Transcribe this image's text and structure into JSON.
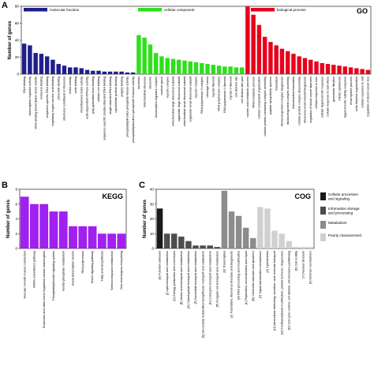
{
  "chart_data": [
    {
      "panel": "A",
      "type": "bar",
      "corner_label": "GO",
      "ylabel": "Number of genes",
      "ylim": [
        0,
        80
      ],
      "yticks": [
        0,
        20,
        40,
        60,
        80
      ],
      "legend": [
        {
          "name": "molecular function",
          "color": "#1f1f8c"
        },
        {
          "name": "cellular component",
          "color": "#2de01a"
        },
        {
          "name": "biological process",
          "color": "#e8001c"
        }
      ],
      "groups": [
        {
          "name": "molecular function",
          "color": "#1f1f8c",
          "categories": [
            "DNA binding",
            "transcription regulator activity",
            "DNA-binding transcription factor activity",
            "metal ion binding",
            "sequence-specific DNA binding",
            "regulatory region nucleic acid binding",
            "chromatin binding",
            "structural constituent of ribosome",
            "motor activity",
            "actin binding",
            "microfilament motor activity",
            "actin-dependent ATPase activity",
            "poly-pyrimidine tract binding",
            "calcium ion binding",
            "sequence-specific double-stranded DNA binding",
            "single-stranded RNA binding",
            "cytoskeletal protein binding",
            "poly(U) binding",
            "phosphatidylinositol phosphate kinase activity",
            "phosphatidylinositol-4-phosphate 5-kinase activity"
          ],
          "values": [
            36,
            34,
            25,
            24,
            21,
            17,
            12,
            10,
            8,
            8,
            7,
            5,
            4,
            4,
            3,
            3,
            3,
            3,
            2,
            2
          ]
        },
        {
          "name": "cellular component",
          "color": "#2de01a",
          "categories": [
            "nucleolus",
            "mitochondrial ribosome",
            "ribosome",
            "transcription regulator complex",
            "nuclear speck",
            "myosin complex",
            "mitochondrial large ribosomal subunit",
            "organellar large ribosomal subunit",
            "mitochondrial small ribosomal subunit",
            "organellar small ribosomal subunit",
            "myosin complex",
            "RNA polymerase II complex",
            "cleavage furrow",
            "myosin filament",
            "RNA polymerase complex",
            "RNA polymerase II filament",
            "myosin II filament",
            "cell division site",
            "cell division site part"
          ],
          "values": [
            46,
            43,
            35,
            25,
            21,
            19,
            18,
            17,
            16,
            15,
            14,
            13,
            12,
            11,
            10,
            9,
            9,
            8,
            8
          ]
        },
        {
          "name": "biological process",
          "color": "#e8001c",
          "categories": [
            "nucleic acid metabolic process",
            "RNA metabolic process",
            "cellular component organization",
            "cellular protein-containing complex assembly",
            "peptide biosynthetic process",
            "translation",
            "ribonucleoprotein complex biogenesis",
            "ribonucleoprotein complex assembly",
            "mitochondrial translation",
            "cellular protein complex disassembly",
            "ribosomal small subunit biogenesis",
            "regulation of blood vessel diameter",
            "cellular response to ions",
            "cellular hyperosmotic response",
            "cellular response to salt stress",
            "glomerular filtration",
            "mitotic cytokinesis",
            "hyperosmotic salinity response",
            "renal system process",
            "actin filament organization",
            "cellular response to salt",
            "regulation of blood vessel size"
          ],
          "values": [
            80,
            70,
            58,
            44,
            38,
            34,
            30,
            27,
            24,
            21,
            19,
            17,
            15,
            13,
            12,
            11,
            10,
            9,
            8,
            7,
            6,
            5
          ]
        }
      ]
    },
    {
      "panel": "B",
      "type": "bar",
      "corner_label": "KEGG",
      "ylabel": "Number of genes",
      "ylim": [
        0,
        8
      ],
      "yticks": [
        0,
        2,
        4,
        6,
        8
      ],
      "color": "#a020f0",
      "categories": [
        "Vascular smooth muscle contraction",
        "mRNA surveillance pathway",
        "Endocrine and other factor-regulated calcium reabsorption",
        "Phosphatidylinositol signaling system",
        "Inositol phosphate metabolism",
        "Basal transcription factors",
        "RNA polymerase",
        "Notch signaling pathway",
        "Fatty acid biosynthesis",
        "Selenocompound metabolism",
        "Non-homologous end-joining"
      ],
      "values": [
        7,
        6,
        6,
        5,
        5,
        3,
        3,
        3,
        2,
        2,
        2
      ]
    },
    {
      "panel": "C",
      "type": "bar",
      "corner_label": "COG",
      "ylabel": "Number of genes",
      "ylim": [
        0,
        40
      ],
      "yticks": [
        0,
        10,
        20,
        30,
        40
      ],
      "legend": [
        {
          "name": "Cellular processes and signaling",
          "color": "#1a1a1a"
        },
        {
          "name": "Information storage and processing",
          "color": "#4d4d4d"
        },
        {
          "name": "Metabolism",
          "color": "#8c8c8c"
        },
        {
          "name": "Poorly characterized",
          "color": "#d0d0d0"
        }
      ],
      "categories": [
        "[S] Function unknown",
        "[I] Lipid transport and metabolism",
        "[C] Energy production and conversion",
        "[E] Amino acid transport and metabolism",
        "[G] Carbohydrate transport and metabolism",
        "[F] Nucleotide transport and metabolism",
        "[Q] Secondary metabolites biosynthesis, transport and catabolism",
        "[H] Coenzyme transport and metabolism",
        "[P] Inorganic ion transport and metabolism",
        "[K] Transcription",
        "[J] Translation, ribosomal structure and biogenesis",
        "[A] RNA processing and modification",
        "[L] Replication, recombination and repair",
        "[B] Chromatin structure and dynamics",
        "[T] Signal transduction mechanisms",
        "[Z] Cytoskeleton",
        "[U] Intracellular trafficking, secretion, and vesicular transport",
        "[O] Posttranslational modification, protein turnover, chaperones",
        "[D] Cell cycle control, cell division, chromosome partitioning",
        "[N] Cell motility",
        "[Y] Nuclear structure",
        "[V] Defense mechanisms"
      ],
      "values": [
        27,
        10,
        10,
        8,
        5,
        2,
        2,
        2,
        1,
        39,
        25,
        22,
        14,
        7,
        28,
        27,
        12,
        10,
        5,
        1,
        1,
        1
      ],
      "colors": [
        "#1a1a1a",
        "#4d4d4d",
        "#4d4d4d",
        "#4d4d4d",
        "#4d4d4d",
        "#4d4d4d",
        "#4d4d4d",
        "#4d4d4d",
        "#4d4d4d",
        "#8c8c8c",
        "#8c8c8c",
        "#8c8c8c",
        "#8c8c8c",
        "#8c8c8c",
        "#d0d0d0",
        "#d0d0d0",
        "#d0d0d0",
        "#d0d0d0",
        "#d0d0d0",
        "#d0d0d0",
        "#d0d0d0",
        "#d0d0d0"
      ]
    }
  ]
}
